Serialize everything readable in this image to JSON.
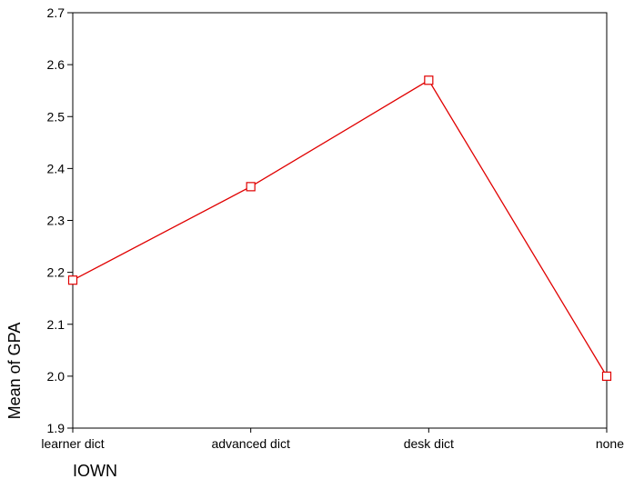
{
  "chart_data": {
    "type": "line",
    "categories": [
      "learner dict",
      "advanced dict",
      "desk dict",
      "none"
    ],
    "series": [
      {
        "values": [
          2.185,
          2.365,
          2.57,
          2.0
        ],
        "color": "#e00000",
        "marker": "square"
      }
    ],
    "xlabel": "IOWN",
    "ylabel": "Mean of GPA",
    "ylim": [
      1.9,
      2.7
    ],
    "yticks": [
      "1.9",
      "2.0",
      "2.1",
      "2.2",
      "2.3",
      "2.4",
      "2.5",
      "2.6",
      "2.7"
    ],
    "grid": false,
    "legend": "none",
    "axis_color": "#000000",
    "background": "#ffffff"
  }
}
